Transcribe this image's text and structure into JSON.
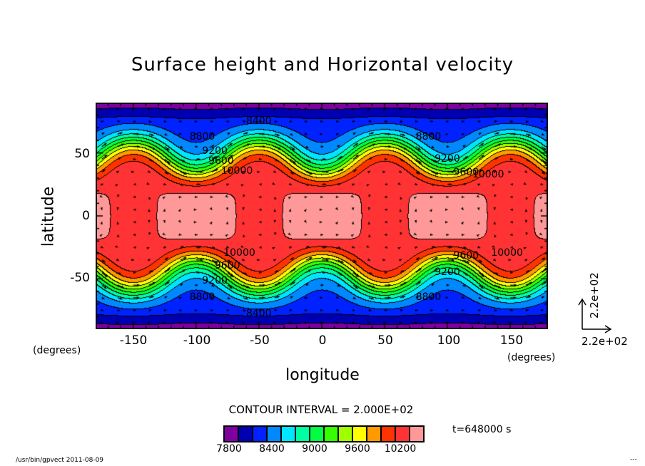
{
  "chart_data": {
    "type": "heatmap",
    "subtype": "filled-contour-with-vectors",
    "title": "Surface height and Horizontal velocity",
    "xlabel": "longitude",
    "ylabel": "latitude",
    "x_unit": "(degrees)",
    "y_unit": "(degrees)",
    "xlim": [
      -180,
      180
    ],
    "ylim": [
      -90,
      90
    ],
    "xticks": [
      -150,
      -100,
      -50,
      0,
      50,
      100,
      150
    ],
    "yticks": [
      50,
      0,
      -50
    ],
    "contour_interval_text": "CONTOUR INTERVAL = 2.000E+02",
    "contour_interval": 200,
    "levels": [
      7800,
      8000,
      8200,
      8400,
      8600,
      8800,
      9000,
      9200,
      9400,
      9600,
      9800,
      10000,
      10200,
      10400,
      10600
    ],
    "colorbar": {
      "colors": [
        "#7f00a0",
        "#0000b0",
        "#0022ff",
        "#0088ff",
        "#00e5ff",
        "#00ffa0",
        "#00ff44",
        "#33ff00",
        "#a0ff00",
        "#ffff00",
        "#ff9900",
        "#ff3300",
        "#ff3333",
        "#ff9999"
      ],
      "tick_labels": [
        "7800",
        "8400",
        "9000",
        "9600",
        "10200"
      ],
      "tick_values": [
        7800,
        8400,
        9000,
        9600,
        10200
      ]
    },
    "contour_labels": [
      {
        "text": "8400",
        "lon": -50,
        "lat": 75
      },
      {
        "text": "8800",
        "lon": -95,
        "lat": 62
      },
      {
        "text": "9200",
        "lon": -85,
        "lat": 51
      },
      {
        "text": "9600",
        "lon": -80,
        "lat": 43
      },
      {
        "text": "10000",
        "lon": -70,
        "lat": 35
      },
      {
        "text": "8800",
        "lon": 85,
        "lat": 62
      },
      {
        "text": "9200",
        "lon": 100,
        "lat": 45
      },
      {
        "text": "9600",
        "lon": 115,
        "lat": 34
      },
      {
        "text": "10000",
        "lon": 130,
        "lat": 32
      },
      {
        "text": "8400",
        "lon": -50,
        "lat": -78
      },
      {
        "text": "8800",
        "lon": -95,
        "lat": -65
      },
      {
        "text": "9200",
        "lon": -85,
        "lat": -52
      },
      {
        "text": "9600",
        "lon": -75,
        "lat": -40
      },
      {
        "text": "10000",
        "lon": -68,
        "lat": -30
      },
      {
        "text": "8800",
        "lon": 85,
        "lat": -65
      },
      {
        "text": "9200",
        "lon": 100,
        "lat": -45
      },
      {
        "text": "9600",
        "lon": 115,
        "lat": -32
      },
      {
        "text": "10000",
        "lon": 145,
        "lat": -30
      }
    ],
    "unit_vector": {
      "x_label": "2.2e+02",
      "y_label": "2.2e+02"
    },
    "time_label": "t=648000 s"
  },
  "footer": {
    "left": "/usr/bin/gpvect  2011-08-09",
    "right": "---"
  }
}
